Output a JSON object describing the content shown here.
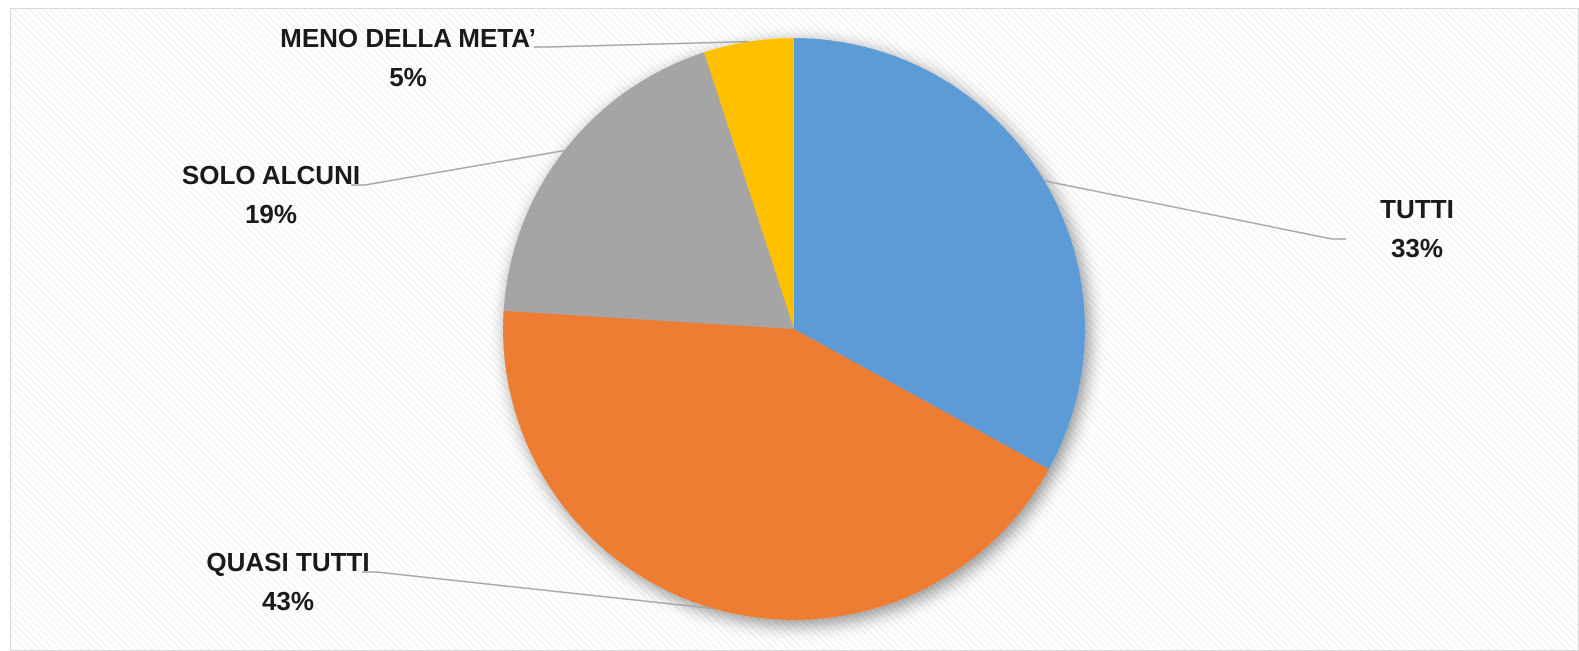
{
  "chart_data": {
    "type": "pie",
    "title": "",
    "slices": [
      {
        "label": "TUTTI",
        "value": 33,
        "value_label": "33%",
        "color": "#5b9bd5"
      },
      {
        "label": "QUASI TUTTI",
        "value": 43,
        "value_label": "43%",
        "color": "#ed7d31"
      },
      {
        "label": "SOLO ALCUNI",
        "value": 19,
        "value_label": "19%",
        "color": "#a5a5a5"
      },
      {
        "label": "MENO DELLA META’",
        "value": 5,
        "value_label": "5%",
        "color": "#ffc000"
      }
    ],
    "start": "12 o'clock",
    "direction": "clockwise",
    "legend": "none",
    "data_labels": "outside with leader lines"
  }
}
